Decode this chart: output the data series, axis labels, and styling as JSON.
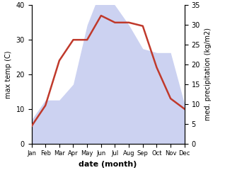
{
  "months": [
    "Jan",
    "Feb",
    "Mar",
    "Apr",
    "May",
    "Jun",
    "Jul",
    "Aug",
    "Sep",
    "Oct",
    "Nov",
    "Dec"
  ],
  "temperature": [
    5,
    11,
    24,
    30,
    30,
    37,
    35,
    35,
    34,
    22,
    13,
    10
  ],
  "precipitation": [
    6,
    11,
    11,
    15,
    30,
    39,
    35,
    30,
    24,
    23,
    23,
    10
  ],
  "temp_color": "#c0392b",
  "precip_color": "#aab4e8",
  "precip_edge_color": "#8899cc",
  "precip_alpha": 0.6,
  "xlabel": "date (month)",
  "ylabel_left": "max temp (C)",
  "ylabel_right": "med. precipitation (kg/m2)",
  "ylim_left": [
    0,
    40
  ],
  "ylim_right": [
    0,
    35
  ],
  "yticks_left": [
    0,
    10,
    20,
    30,
    40
  ],
  "yticks_right": [
    0,
    5,
    10,
    15,
    20,
    25,
    30,
    35
  ],
  "temp_lw": 1.8,
  "xlabel_fontsize": 8,
  "ylabel_fontsize": 7,
  "tick_fontsize": 7,
  "xtick_fontsize": 6
}
